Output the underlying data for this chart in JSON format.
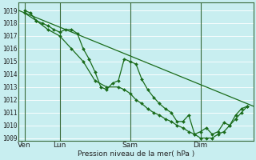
{
  "xlabel": "Pression niveau de la mer( hPa )",
  "bg_color": "#c8eef0",
  "grid_color": "#ffffff",
  "line_color": "#1a6b1a",
  "ylim": [
    1008.8,
    1019.6
  ],
  "yticks": [
    1009,
    1010,
    1011,
    1012,
    1013,
    1014,
    1015,
    1016,
    1017,
    1018,
    1019
  ],
  "xlim": [
    0,
    40
  ],
  "x_tick_positions": [
    1,
    7,
    19,
    31
  ],
  "x_tick_labels": [
    "Ven",
    "Lun",
    "Sam",
    "Dim"
  ],
  "x_vlines": [
    1,
    7,
    19,
    31
  ],
  "series_trend": {
    "x": [
      0,
      40
    ],
    "y": [
      1019.0,
      1011.5
    ]
  },
  "series_mid": [
    [
      1,
      1019.0
    ],
    [
      2,
      1018.8
    ],
    [
      3,
      1018.2
    ],
    [
      4,
      1018.0
    ],
    [
      5,
      1017.8
    ],
    [
      6,
      1017.5
    ],
    [
      7,
      1017.3
    ],
    [
      8,
      1017.5
    ],
    [
      9,
      1017.5
    ],
    [
      10,
      1017.2
    ],
    [
      11,
      1016.0
    ],
    [
      12,
      1015.2
    ],
    [
      13,
      1014.2
    ],
    [
      14,
      1013.0
    ],
    [
      15,
      1012.8
    ],
    [
      16,
      1013.3
    ],
    [
      17,
      1013.5
    ],
    [
      18,
      1015.2
    ],
    [
      19,
      1015.0
    ],
    [
      20,
      1014.8
    ],
    [
      21,
      1013.6
    ],
    [
      22,
      1012.8
    ],
    [
      23,
      1012.2
    ],
    [
      24,
      1011.7
    ],
    [
      25,
      1011.3
    ],
    [
      26,
      1011.0
    ],
    [
      27,
      1010.3
    ],
    [
      28,
      1010.3
    ],
    [
      29,
      1010.8
    ],
    [
      30,
      1009.3
    ],
    [
      31,
      1009.5
    ],
    [
      32,
      1009.8
    ],
    [
      33,
      1009.3
    ],
    [
      34,
      1009.5
    ],
    [
      35,
      1010.2
    ],
    [
      36,
      1010.0
    ],
    [
      37,
      1010.8
    ],
    [
      38,
      1011.3
    ],
    [
      39,
      1011.5
    ]
  ],
  "series_low": [
    [
      1,
      1018.8
    ],
    [
      3,
      1018.2
    ],
    [
      5,
      1017.5
    ],
    [
      7,
      1017.0
    ],
    [
      9,
      1016.0
    ],
    [
      11,
      1015.0
    ],
    [
      13,
      1013.5
    ],
    [
      15,
      1013.0
    ],
    [
      17,
      1013.0
    ],
    [
      18,
      1012.8
    ],
    [
      19,
      1012.5
    ],
    [
      20,
      1012.0
    ],
    [
      21,
      1011.7
    ],
    [
      22,
      1011.3
    ],
    [
      23,
      1011.0
    ],
    [
      24,
      1010.8
    ],
    [
      25,
      1010.5
    ],
    [
      26,
      1010.3
    ],
    [
      27,
      1010.0
    ],
    [
      28,
      1009.8
    ],
    [
      29,
      1009.5
    ],
    [
      30,
      1009.3
    ],
    [
      31,
      1009.0
    ],
    [
      32,
      1009.0
    ],
    [
      33,
      1009.0
    ],
    [
      34,
      1009.3
    ],
    [
      35,
      1009.5
    ],
    [
      36,
      1010.0
    ],
    [
      37,
      1010.5
    ],
    [
      38,
      1011.0
    ],
    [
      39,
      1011.5
    ]
  ]
}
